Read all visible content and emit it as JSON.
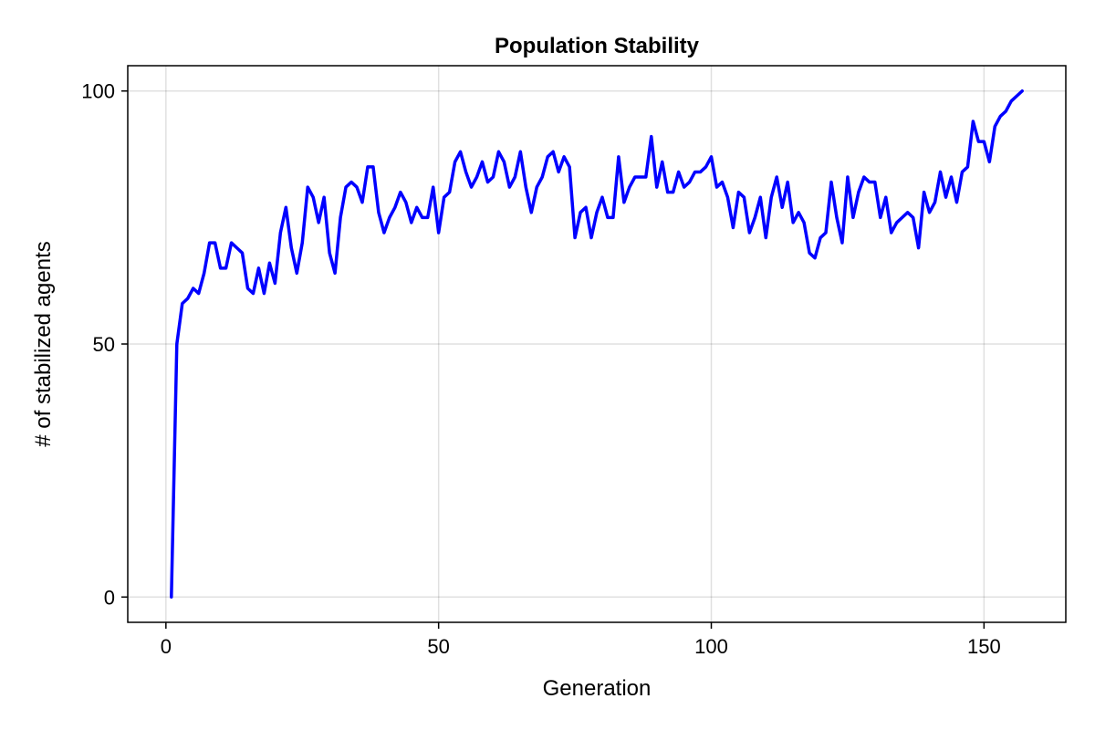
{
  "chart_data": {
    "type": "line",
    "title": "Population Stability",
    "xlabel": "Generation",
    "ylabel": "# of stabilized agents",
    "xlim": [
      -7,
      165
    ],
    "ylim": [
      -5,
      105
    ],
    "xticks": [
      0,
      50,
      100,
      150
    ],
    "yticks": [
      0,
      50,
      100
    ],
    "xtick_labels": [
      "0",
      "50",
      "100",
      "150"
    ],
    "ytick_labels": [
      "0",
      "50",
      "100"
    ],
    "grid": true,
    "legend": "none",
    "series": [
      {
        "color": "#0000ff",
        "x": [
          1,
          2,
          3,
          4,
          5,
          6,
          7,
          8,
          9,
          10,
          11,
          12,
          13,
          14,
          15,
          16,
          17,
          18,
          19,
          20,
          21,
          22,
          23,
          24,
          25,
          26,
          27,
          28,
          29,
          30,
          31,
          32,
          33,
          34,
          35,
          36,
          37,
          38,
          39,
          40,
          41,
          42,
          43,
          44,
          45,
          46,
          47,
          48,
          49,
          50,
          51,
          52,
          53,
          54,
          55,
          56,
          57,
          58,
          59,
          60,
          61,
          62,
          63,
          64,
          65,
          66,
          67,
          68,
          69,
          70,
          71,
          72,
          73,
          74,
          75,
          76,
          77,
          78,
          79,
          80,
          81,
          82,
          83,
          84,
          85,
          86,
          87,
          88,
          89,
          90,
          91,
          92,
          93,
          94,
          95,
          96,
          97,
          98,
          99,
          100,
          101,
          102,
          103,
          104,
          105,
          106,
          107,
          108,
          109,
          110,
          111,
          112,
          113,
          114,
          115,
          116,
          117,
          118,
          119,
          120,
          121,
          122,
          123,
          124,
          125,
          126,
          127,
          128,
          129,
          130,
          131,
          132,
          133,
          134,
          135,
          136,
          137,
          138,
          139,
          140,
          141,
          142,
          143,
          144,
          145,
          146,
          147,
          148,
          149,
          150,
          151,
          152,
          153,
          154,
          155,
          156,
          157
        ],
        "y": [
          0,
          50,
          58,
          59,
          61,
          60,
          64,
          70,
          70,
          65,
          65,
          70,
          69,
          68,
          61,
          60,
          65,
          60,
          66,
          62,
          72,
          77,
          69,
          64,
          70,
          81,
          79,
          74,
          79,
          68,
          64,
          75,
          81,
          82,
          81,
          78,
          85,
          85,
          76,
          72,
          75,
          77,
          80,
          78,
          74,
          77,
          75,
          75,
          81,
          72,
          79,
          80,
          86,
          88,
          84,
          81,
          83,
          86,
          82,
          83,
          88,
          86,
          81,
          83,
          88,
          81,
          76,
          81,
          83,
          87,
          88,
          84,
          87,
          85,
          71,
          76,
          77,
          71,
          76,
          79,
          75,
          75,
          87,
          78,
          81,
          83,
          83,
          83,
          91,
          81,
          86,
          80,
          80,
          84,
          81,
          82,
          84,
          84,
          85,
          87,
          81,
          82,
          79,
          73,
          80,
          79,
          72,
          75,
          79,
          71,
          79,
          83,
          77,
          82,
          74,
          76,
          74,
          68,
          67,
          71,
          72,
          82,
          75,
          70,
          83,
          75,
          80,
          83,
          82,
          82,
          75,
          79,
          72,
          74,
          75,
          76,
          75,
          69,
          80,
          76,
          78,
          84,
          79,
          83,
          78,
          84,
          85,
          94,
          90,
          90,
          86,
          93,
          95,
          96,
          98,
          99,
          100
        ]
      }
    ]
  }
}
